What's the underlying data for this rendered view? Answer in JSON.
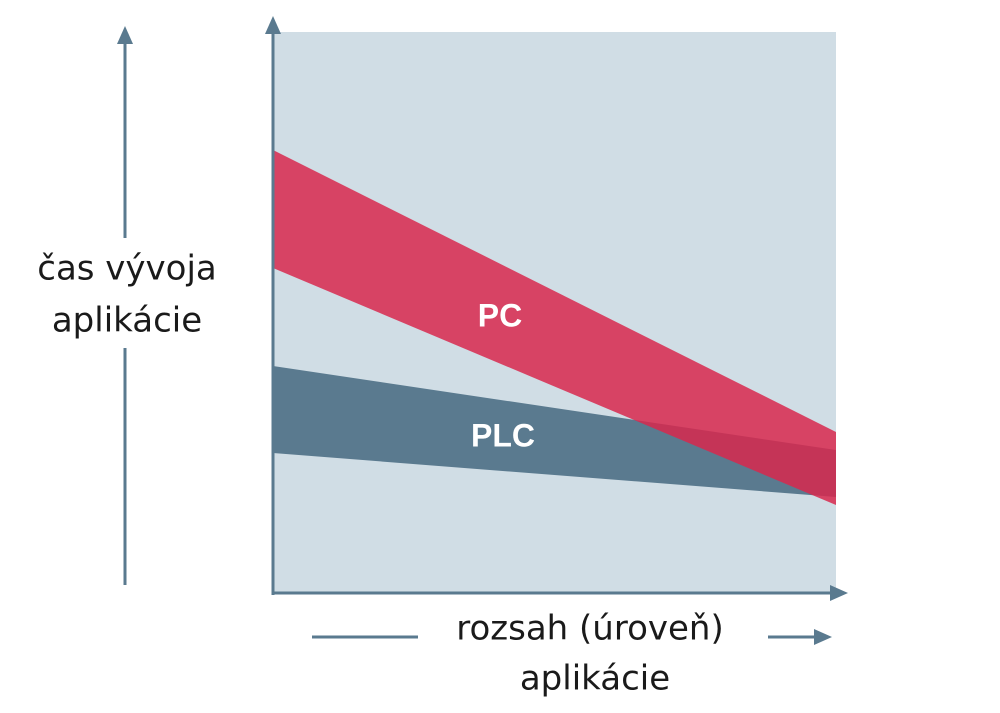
{
  "y_axis_label": [
    "čas vývoja",
    "aplikácie"
  ],
  "x_axis_label": [
    "rozsah (úroveň)",
    "aplikácie"
  ],
  "bands": [
    {
      "label": "PC"
    },
    {
      "label": "PLC"
    }
  ]
}
